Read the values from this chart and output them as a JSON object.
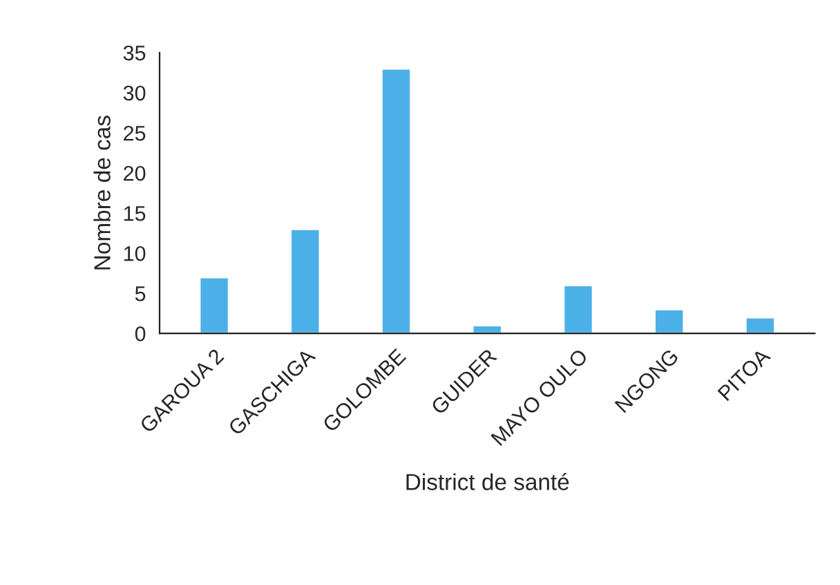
{
  "chart_data": {
    "type": "bar",
    "xlabel": "District de santé",
    "ylabel": "Nombre de cas",
    "categories": [
      "GAROUA 2",
      "GASCHIGA",
      "GOLOMBE",
      "GUIDER",
      "MAYO OULO",
      "NGONG",
      "PITOA"
    ],
    "values": [
      7,
      13,
      33,
      1,
      6,
      3,
      2
    ],
    "color": "#4cb0e8",
    "ylim": [
      0,
      35
    ],
    "yticks": [
      0,
      5,
      10,
      15,
      20,
      25,
      30,
      35
    ],
    "grid": false
  }
}
